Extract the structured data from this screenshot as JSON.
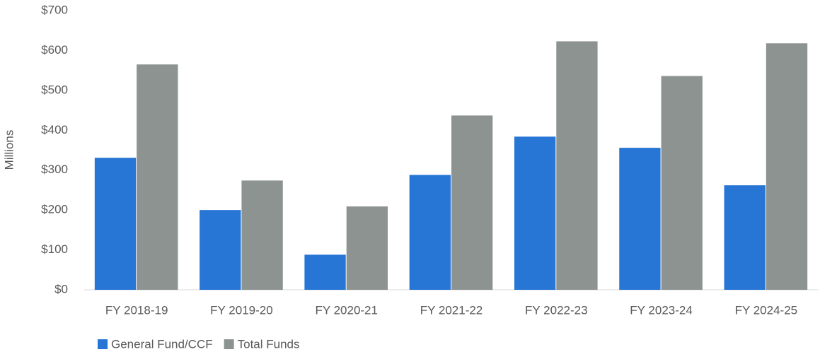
{
  "chart_data": {
    "type": "bar",
    "y_label": "Millions",
    "categories": [
      "FY 2018-19",
      "FY 2019-20",
      "FY 2020-21",
      "FY 2021-22",
      "FY 2022-23",
      "FY 2023-24",
      "FY 2024-25"
    ],
    "series": [
      {
        "name": "General Fund/CCF",
        "color": "#2775d4",
        "values": [
          331,
          200,
          88,
          288,
          384,
          356,
          262
        ]
      },
      {
        "name": "Total Funds",
        "color": "#8c9390",
        "values": [
          565,
          274,
          209,
          437,
          623,
          536,
          618
        ]
      }
    ],
    "ylim": [
      0,
      700
    ],
    "yticks": [
      {
        "value": 0,
        "label": "$0"
      },
      {
        "value": 100,
        "label": "$100"
      },
      {
        "value": 200,
        "label": "$200"
      },
      {
        "value": 300,
        "label": "$300"
      },
      {
        "value": 400,
        "label": "$400"
      },
      {
        "value": 500,
        "label": "$500"
      },
      {
        "value": 600,
        "label": "$600"
      },
      {
        "value": 700,
        "label": "$700"
      }
    ],
    "grid": false,
    "legend": "bottom-left"
  }
}
